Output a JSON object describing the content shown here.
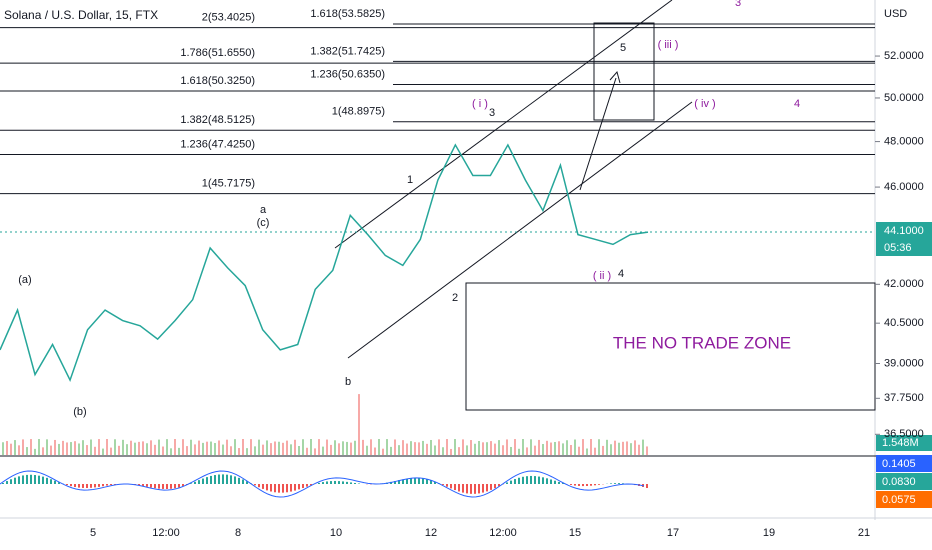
{
  "chart_data": {
    "type": "line",
    "title": "Solana / U.S. Dollar, 15, FTX",
    "currency": "USD",
    "log_scale": true,
    "ylim": [
      35.8,
      54.8
    ],
    "yticks": [
      {
        "value": 52,
        "label": "52.0000"
      },
      {
        "value": 50,
        "label": "50.0000"
      },
      {
        "value": 48,
        "label": "48.0000"
      },
      {
        "value": 46,
        "label": "46.0000"
      },
      {
        "value": 42,
        "label": "42.0000"
      },
      {
        "value": 40.5,
        "label": "40.5000"
      },
      {
        "value": 39,
        "label": "39.0000"
      },
      {
        "value": 37.75,
        "label": "37.7500"
      },
      {
        "value": 36.5,
        "label": "36.5000"
      }
    ],
    "x_labels": [
      "5",
      "12:00",
      "8",
      "10",
      "12",
      "12:00",
      "15",
      "17",
      "19",
      "21"
    ],
    "price": {
      "name": "SOLUSD",
      "color": "#26a69a",
      "values": [
        39.5,
        41.0,
        38.6,
        39.7,
        38.4,
        40.25,
        41.0,
        40.6,
        40.4,
        39.9,
        40.6,
        41.4,
        43.45,
        42.65,
        41.95,
        40.25,
        39.5,
        39.7,
        41.8,
        42.55,
        44.8,
        44.0,
        43.15,
        42.75,
        43.8,
        46.3,
        47.85,
        46.5,
        46.5,
        47.85,
        46.3,
        45.0,
        46.95,
        44.0,
        43.8,
        43.6,
        44.0,
        44.1
      ]
    },
    "last_price": {
      "value": 44.1,
      "label": "44.1000"
    },
    "countdown": "05:36",
    "volume_label": "1.548M",
    "osc_labels": [
      "0.1405",
      "0.0830",
      "0.0575"
    ],
    "fib_left": [
      {
        "value": 53.4025,
        "label": "2(53.4025)"
      },
      {
        "value": 51.655,
        "label": "1.786(51.6550)"
      },
      {
        "value": 50.325,
        "label": "1.618(50.3250)"
      },
      {
        "value": 48.5125,
        "label": "1.382(48.5125)"
      },
      {
        "value": 47.425,
        "label": "1.236(47.4250)"
      },
      {
        "value": 45.7175,
        "label": "1(45.7175)"
      }
    ],
    "fib_mid": [
      {
        "value": 53.5825,
        "label": "1.618(53.5825)"
      },
      {
        "value": 51.7425,
        "label": "1.382(51.7425)"
      },
      {
        "value": 50.635,
        "label": "1.236(50.6350)"
      },
      {
        "value": 48.8975,
        "label": "1(48.8975)"
      }
    ],
    "waves": [
      "a",
      "(c)",
      "(a)",
      "(b)",
      "b",
      "1",
      "2",
      "( i )",
      "3",
      "5",
      "( iii )",
      "( iv )",
      "4",
      "3",
      "( ii )",
      "4"
    ],
    "zone_label": "THE NO TRADE ZONE"
  }
}
